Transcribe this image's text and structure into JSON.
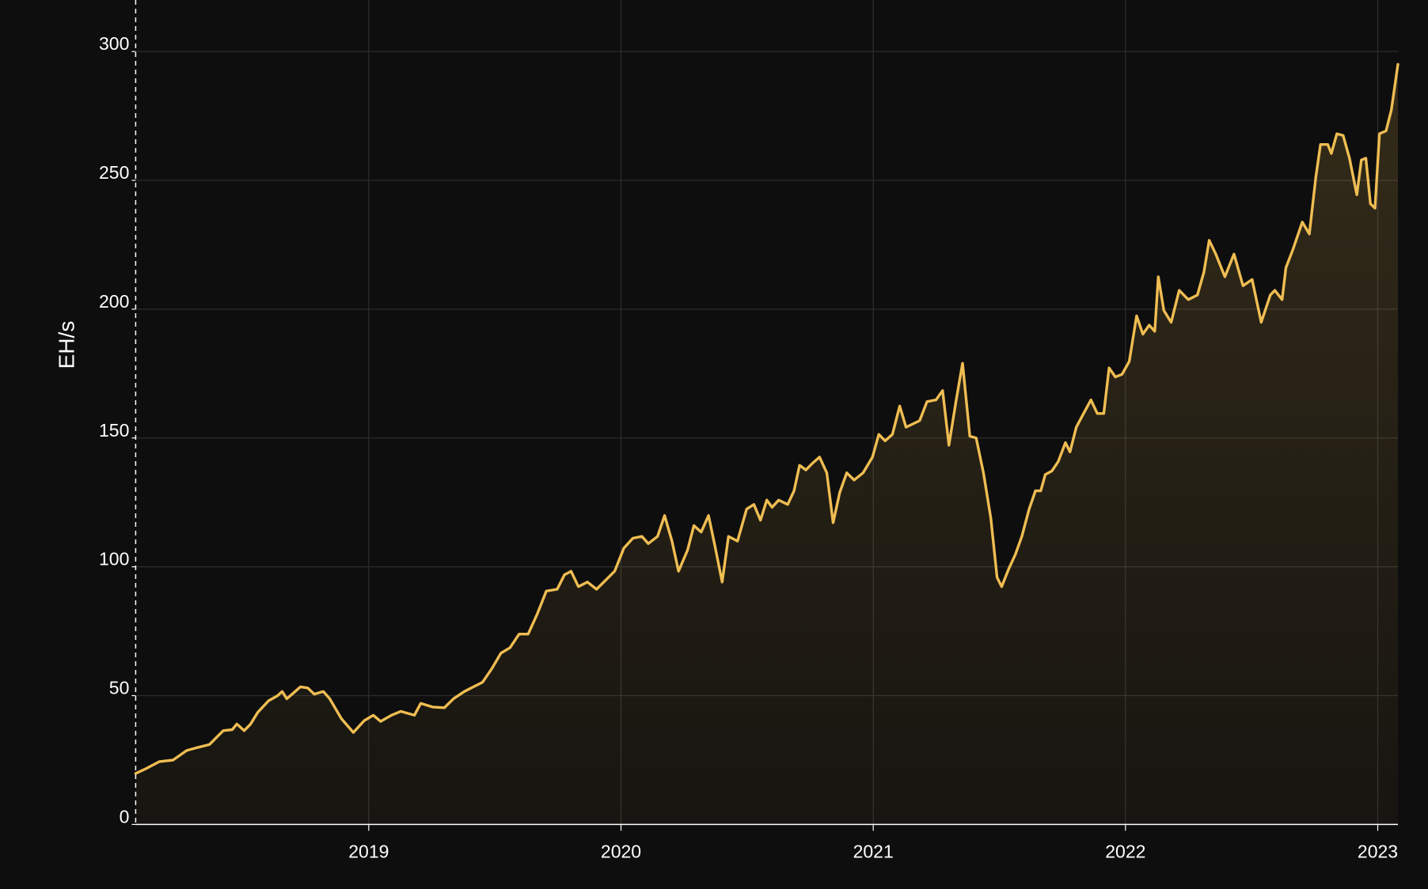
{
  "chart_data": {
    "type": "line",
    "y_label": "EH/s",
    "x": [
      2018.076,
      2018.116,
      2018.17,
      2018.224,
      2018.278,
      2018.314,
      2018.368,
      2018.423,
      2018.459,
      2018.477,
      2018.506,
      2018.531,
      2018.56,
      2018.603,
      2018.639,
      2018.657,
      2018.675,
      2018.701,
      2018.729,
      2018.758,
      2018.784,
      2018.82,
      2018.845,
      2018.892,
      2018.939,
      2018.982,
      2019.018,
      2019.047,
      2019.09,
      2019.127,
      2019.181,
      2019.206,
      2019.253,
      2019.3,
      2019.336,
      2019.379,
      2019.415,
      2019.451,
      2019.488,
      2019.524,
      2019.56,
      2019.596,
      2019.632,
      2019.668,
      2019.704,
      2019.747,
      2019.776,
      2019.802,
      2019.831,
      2019.867,
      2019.903,
      2019.939,
      2019.975,
      2020.011,
      2020.047,
      2020.083,
      2020.108,
      2020.145,
      2020.173,
      2020.202,
      2020.228,
      2020.264,
      2020.289,
      2020.318,
      2020.347,
      2020.372,
      2020.401,
      2020.426,
      2020.462,
      2020.498,
      2020.527,
      2020.553,
      2020.578,
      2020.599,
      2020.625,
      2020.661,
      2020.686,
      2020.708,
      2020.733,
      2020.758,
      2020.787,
      2020.816,
      2020.841,
      2020.867,
      2020.895,
      2020.924,
      2020.96,
      2020.997,
      2021.022,
      2021.047,
      2021.076,
      2021.105,
      2021.13,
      2021.184,
      2021.213,
      2021.249,
      2021.275,
      2021.3,
      2021.329,
      2021.354,
      2021.383,
      2021.408,
      2021.437,
      2021.466,
      2021.491,
      2021.509,
      2021.538,
      2021.563,
      2021.589,
      2021.618,
      2021.643,
      2021.664,
      2021.682,
      2021.708,
      2021.733,
      2021.762,
      2021.78,
      2021.805,
      2021.834,
      2021.863,
      2021.888,
      2021.914,
      2021.935,
      2021.96,
      2021.986,
      2022.015,
      2022.044,
      2022.069,
      2022.094,
      2022.116,
      2022.13,
      2022.152,
      2022.181,
      2022.213,
      2022.249,
      2022.285,
      2022.311,
      2022.332,
      2022.358,
      2022.394,
      2022.43,
      2022.466,
      2022.502,
      2022.538,
      2022.574,
      2022.592,
      2022.621,
      2022.636,
      2022.664,
      2022.701,
      2022.729,
      2022.755,
      2022.773,
      2022.802,
      2022.816,
      2022.838,
      2022.863,
      2022.888,
      2022.917,
      2022.935,
      2022.953,
      2022.971,
      2022.989,
      2023.007,
      2023.033,
      2023.054,
      2023.08
    ],
    "series": [
      {
        "color": "#efbd52",
        "values": [
          19.8,
          21.6,
          24.4,
          25,
          28.7,
          29.7,
          31,
          36.4,
          36.8,
          39,
          36.4,
          38.9,
          43.5,
          48,
          50,
          51.6,
          48.8,
          51,
          53.4,
          53,
          50.6,
          51.6,
          48.8,
          41,
          35.7,
          40.3,
          42.4,
          40,
          42.4,
          43.9,
          42.4,
          47,
          45.6,
          45.3,
          48.8,
          51.6,
          53.4,
          55.2,
          60.5,
          66.5,
          68.6,
          73.9,
          73.9,
          81.7,
          90.6,
          91.3,
          96.9,
          98.3,
          92.3,
          94.1,
          91.3,
          94.8,
          98.3,
          107.2,
          111.1,
          111.8,
          109,
          111.8,
          119.9,
          110,
          98.3,
          106.5,
          116,
          113.5,
          119.9,
          108.2,
          94.1,
          111.8,
          110,
          122.4,
          124.2,
          118.1,
          125.9,
          123.1,
          125.9,
          124.2,
          129.5,
          139.4,
          137.6,
          140.1,
          142.6,
          136.5,
          117.1,
          128.8,
          136.5,
          133.7,
          136.5,
          142.6,
          151.4,
          148.9,
          151.4,
          162.4,
          154.2,
          156.7,
          164.1,
          164.8,
          168.4,
          147.2,
          164.8,
          179,
          150.7,
          150,
          136.5,
          118.9,
          95.9,
          92.3,
          99.4,
          104.7,
          111.8,
          122.4,
          129.5,
          129.5,
          135.8,
          137.2,
          140.8,
          148.2,
          144.6,
          154.2,
          159.5,
          164.8,
          159.5,
          159.5,
          177.2,
          173.7,
          174.7,
          179.7,
          197.4,
          190.3,
          193.8,
          191.4,
          212.6,
          199.5,
          194.9,
          207.3,
          203.7,
          205.5,
          214.4,
          226.7,
          221.4,
          212.6,
          221.4,
          209.1,
          211.5,
          194.9,
          205.5,
          207.3,
          203.7,
          216.1,
          223.2,
          233.8,
          229.2,
          251.5,
          263.9,
          263.9,
          260.4,
          268.1,
          267.4,
          258.6,
          244.4,
          257.9,
          258.6,
          240.9,
          239.2,
          268.1,
          269.2,
          277.3,
          295
        ]
      }
    ],
    "xlim": [
      2018.076,
      2023.08
    ],
    "xticks": [
      2019,
      2020,
      2021,
      2022,
      2023
    ],
    "ylim": [
      0,
      320
    ],
    "yticks": [
      0,
      50,
      100,
      150,
      200,
      250,
      300
    ],
    "grid": true,
    "area_fill": true
  }
}
